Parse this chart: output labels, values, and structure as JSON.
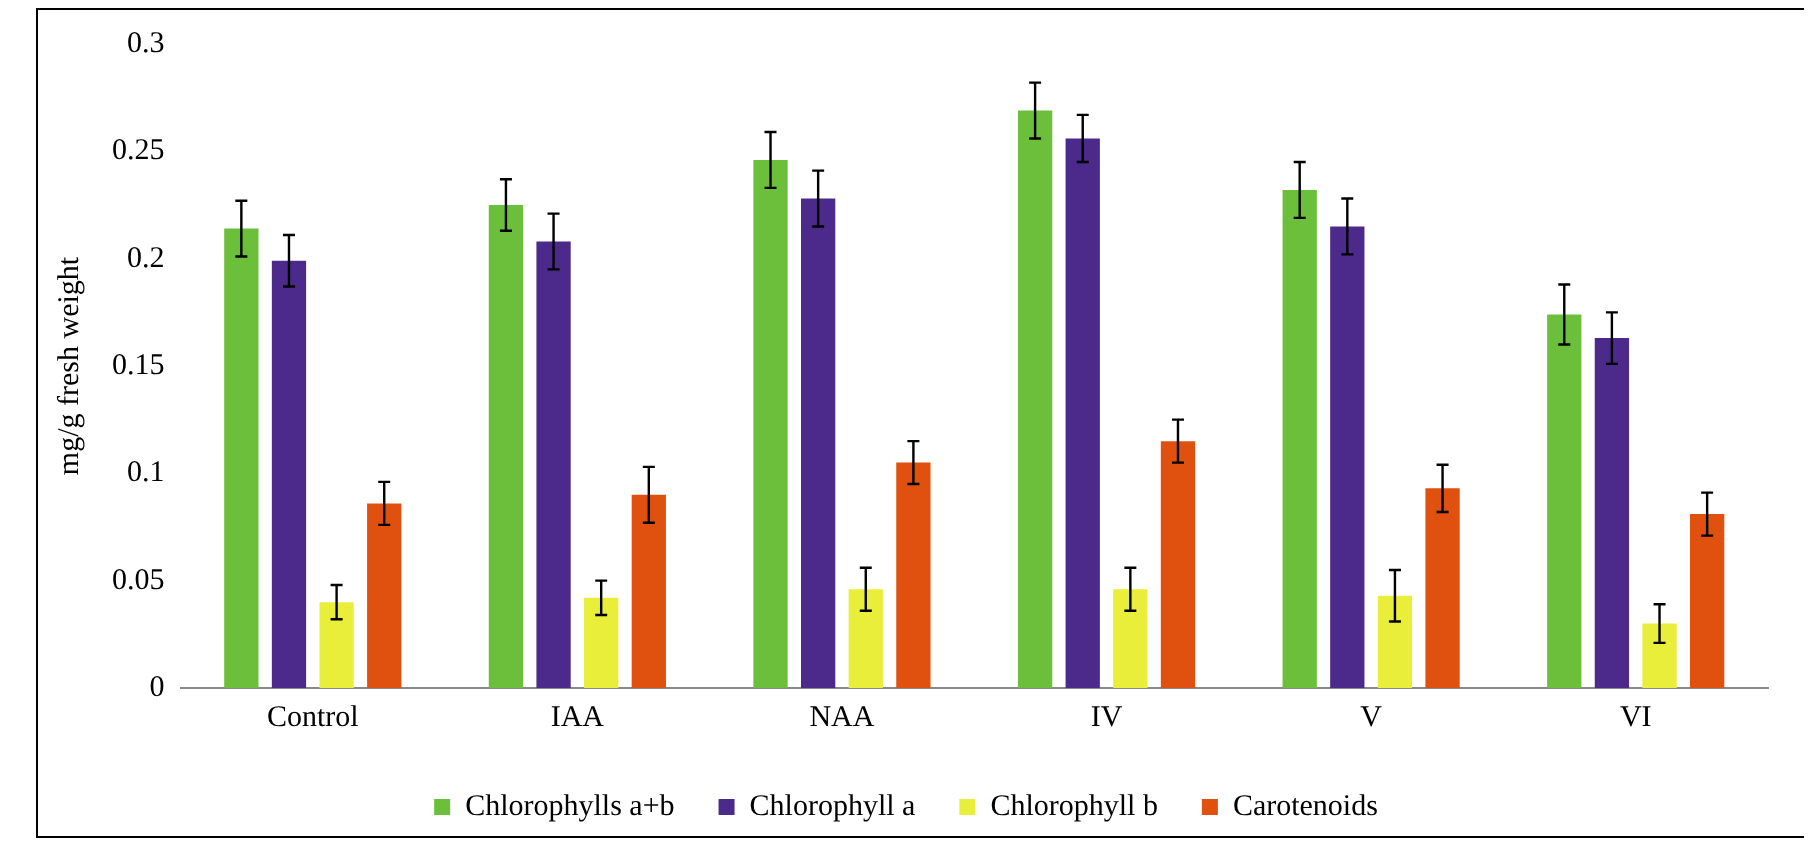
{
  "chart_data": {
    "type": "bar",
    "ylabel": "mg/g fresh weight",
    "categories": [
      "Control",
      "IAA",
      "NAA",
      "IV",
      "V",
      "VI"
    ],
    "series": [
      {
        "name": "Chlorophylls a+b",
        "color": "#6cbf3a",
        "values": [
          0.214,
          0.225,
          0.246,
          0.269,
          0.232,
          0.174
        ],
        "errors": [
          0.013,
          0.012,
          0.013,
          0.013,
          0.013,
          0.014
        ]
      },
      {
        "name": "Chlorophyll a",
        "color": "#4b2a8c",
        "values": [
          0.199,
          0.208,
          0.228,
          0.256,
          0.215,
          0.163
        ],
        "errors": [
          0.012,
          0.013,
          0.013,
          0.011,
          0.013,
          0.012
        ]
      },
      {
        "name": "Chlorophyll b",
        "color": "#e8ee3a",
        "values": [
          0.04,
          0.042,
          0.046,
          0.046,
          0.043,
          0.03
        ],
        "errors": [
          0.008,
          0.008,
          0.01,
          0.01,
          0.012,
          0.009
        ]
      },
      {
        "name": "Carotenoids",
        "color": "#e0500f",
        "values": [
          0.086,
          0.09,
          0.105,
          0.115,
          0.093,
          0.081
        ],
        "errors": [
          0.01,
          0.013,
          0.01,
          0.01,
          0.011,
          0.01
        ]
      }
    ],
    "ylim": [
      0,
      0.3
    ],
    "yticks": [
      0,
      0.05,
      0.1,
      0.15,
      0.2,
      0.25,
      0.3
    ],
    "grid": false,
    "legend": "bottom"
  }
}
